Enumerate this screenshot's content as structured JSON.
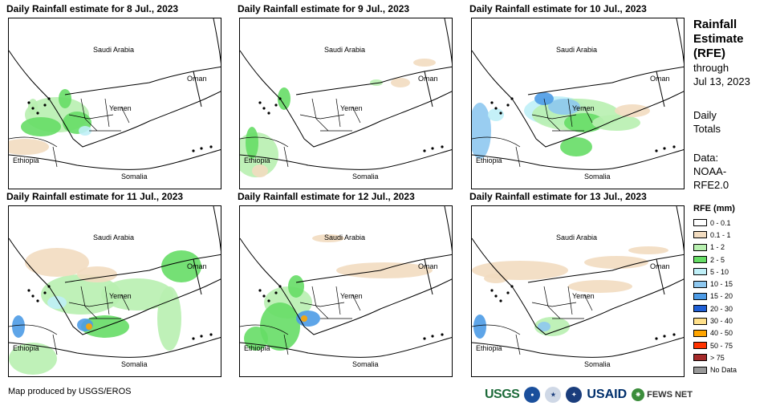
{
  "panels": [
    {
      "title": "Daily Rainfall estimate for 8 Jul., 2023"
    },
    {
      "title": "Daily Rainfall estimate for 9 Jul., 2023"
    },
    {
      "title": "Daily Rainfall estimate for 10 Jul., 2023"
    },
    {
      "title": "Daily Rainfall estimate for 11 Jul., 2023"
    },
    {
      "title": "Daily Rainfall estimate for 12 Jul., 2023"
    },
    {
      "title": "Daily Rainfall estimate for 13 Jul., 2023"
    }
  ],
  "places": {
    "saudi": "Saudi Arabia",
    "oman": "Oman",
    "yemen": "Yemen",
    "ethiopia": "Ethiopia",
    "somalia": "Somalia"
  },
  "side": {
    "title_line1": "Rainfall",
    "title_line2": "Estimate",
    "title_line3": "(RFE)",
    "through": "through",
    "date": "Jul 13, 2023",
    "daily1": "Daily",
    "daily2": "Totals",
    "data1": "Data:",
    "data2": "NOAA-",
    "data3": "RFE2.0"
  },
  "legend": {
    "title": "RFE (mm)",
    "items": [
      {
        "label": "0 - 0.1",
        "color": "#ffffff"
      },
      {
        "label": "0.1 - 1",
        "color": "#f2dcc0"
      },
      {
        "label": "1 - 2",
        "color": "#b8f0b0"
      },
      {
        "label": "2 - 5",
        "color": "#66dd66"
      },
      {
        "label": "5 - 10",
        "color": "#bfeff7"
      },
      {
        "label": "10 - 15",
        "color": "#8ec8f0"
      },
      {
        "label": "15 - 20",
        "color": "#4d9be6"
      },
      {
        "label": "20 - 30",
        "color": "#1f5fd6"
      },
      {
        "label": "30 - 40",
        "color": "#ffe08a"
      },
      {
        "label": "40 - 50",
        "color": "#ffa500"
      },
      {
        "label": "50 - 75",
        "color": "#ff3300"
      },
      {
        "label": "> 75",
        "color": "#a52a2a"
      },
      {
        "label": "No Data",
        "color": "#999999"
      }
    ]
  },
  "credit": "Map produced by USGS/EROS",
  "logos": {
    "usgs": "USGS",
    "usaid": "USAID",
    "fews": "FEWS NET"
  }
}
